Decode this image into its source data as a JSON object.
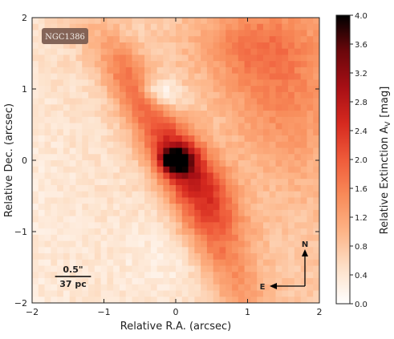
{
  "chart_data": {
    "type": "heatmap",
    "title": "",
    "xlabel": "Relative R.A. (arcsec)",
    "ylabel": "Relative Dec. (arcsec)",
    "xlim": [
      -2,
      2
    ],
    "ylim": [
      -2,
      2
    ],
    "x_ticks": [
      -2,
      -1,
      0,
      1,
      2
    ],
    "x_tick_labels": [
      "−2",
      "−1",
      "0",
      "1",
      "2"
    ],
    "y_ticks": [
      -2,
      -1,
      0,
      1,
      2
    ],
    "y_tick_labels": [
      "−2",
      "−1",
      "0",
      "1",
      "2"
    ],
    "grid": false,
    "colorbar": {
      "label": "Relative Extinction A",
      "label_subscript": "V",
      "label_unit": "[mag]",
      "min": 0.0,
      "max": 4.0,
      "ticks": [
        0.0,
        0.4,
        0.8,
        1.2,
        1.6,
        2.0,
        2.4,
        2.8,
        3.2,
        3.6,
        4.0
      ],
      "tick_labels": [
        "0.0",
        "0.4",
        "0.8",
        "1.2",
        "1.6",
        "2.0",
        "2.4",
        "2.8",
        "3.2",
        "3.6",
        "4.0"
      ],
      "colors": [
        "#ffffff",
        "#fde0c8",
        "#fdb487",
        "#f88b59",
        "#ef5b3a",
        "#d6291f",
        "#a70f15",
        "#6b070b",
        "#000000"
      ]
    },
    "annotations": {
      "galaxy_label": "NGC1386",
      "scale_bar_angle": "0.5\"",
      "scale_bar_length_arcsec": 0.5,
      "scale_bar_physical": "37 pc",
      "compass_north": "N",
      "compass_east": "E"
    },
    "features": [
      {
        "x": 0.0,
        "y": 0.0,
        "peak": 3.6,
        "note": "nuclear dust peak"
      },
      {
        "x": -0.55,
        "y": 1.05,
        "peak": 1.6,
        "note": "northern dust lane"
      },
      {
        "x": 0.45,
        "y": -0.45,
        "peak": 2.1,
        "note": "southern dust lane"
      },
      {
        "x": -0.25,
        "y": 0.95,
        "peak": 0.2,
        "note": "low-extinction pocket"
      },
      {
        "x": 1.5,
        "y": 1.2,
        "peak": 1.3,
        "note": "north-east extinction region"
      }
    ]
  }
}
